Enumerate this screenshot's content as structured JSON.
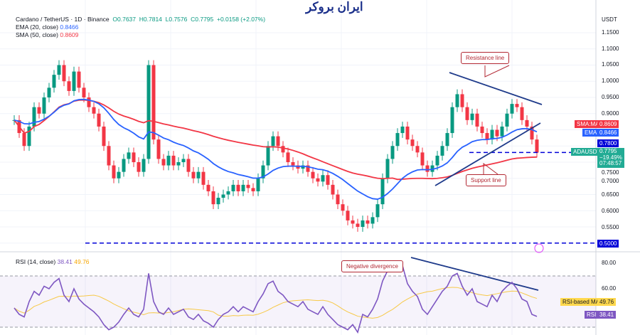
{
  "header": {
    "symbol": "Cardano / TetherUS · 1D · Binance",
    "o": "O0.7637",
    "h": "H0.7814",
    "l": "L0.7576",
    "c": "C0.7795",
    "change": "+0.0158 (+2.07%)",
    "ema_label": "EMA (20, close)",
    "ema_value": "0.8466",
    "sma_label": "SMA (50, close)",
    "sma_value": "0.8609",
    "rsi_label": "RSI (14, close)",
    "rsi_value": "38.41",
    "rsi_ma_value": "49.76"
  },
  "logo": "ایران بروکر",
  "price_axis": {
    "currency": "USDT",
    "ticks": [
      "1.1500",
      "1.1000",
      "1.0500",
      "1.0000",
      "0.9500",
      "0.9000",
      "0.7500",
      "0.7000",
      "0.6500",
      "0.6000",
      "0.5500"
    ]
  },
  "rsi_axis": {
    "ticks": [
      "80.00",
      "60.00"
    ]
  },
  "badges": {
    "sma_ma": "SMA:MA",
    "sma_val": "0.8609",
    "ema": "EMA",
    "ema_val": "0.8466",
    "level": "0.7800",
    "symbol": "ADAUSDT",
    "price": "0.7795",
    "pct": "−19.49%",
    "countdown": "07:48:57",
    "support_level": "0.5000",
    "rsi_ma": "RSI-based MA",
    "rsi_ma_val": "49.76",
    "rsi": "RSI",
    "rsi_val": "38.41"
  },
  "annotations": {
    "resistance": "Resistance line",
    "support": "Support line",
    "divergence": "Negative divergence"
  },
  "colors": {
    "up": "#089981",
    "down": "#f23645",
    "ema": "#2962ff",
    "sma": "#f23645",
    "rsi": "#7e57c2",
    "rsi_ma": "#f7c948",
    "trend": "#1e3a8a"
  },
  "chart_data": {
    "type": "candlestick",
    "ylim": [
      0.5,
      1.15
    ],
    "rsi_ylim": [
      20,
      85
    ],
    "close": [
      0.88,
      0.84,
      0.8,
      0.86,
      0.92,
      0.9,
      0.95,
      0.98,
      1.02,
      1.05,
      1.0,
      0.97,
      1.03,
      0.98,
      0.95,
      0.92,
      0.9,
      0.86,
      0.8,
      0.74,
      0.7,
      0.72,
      0.76,
      0.78,
      0.75,
      0.72,
      0.76,
      1.05,
      0.82,
      0.76,
      0.74,
      0.77,
      0.74,
      0.75,
      0.76,
      0.72,
      0.7,
      0.72,
      0.68,
      0.66,
      0.62,
      0.64,
      0.65,
      0.66,
      0.68,
      0.66,
      0.68,
      0.67,
      0.66,
      0.7,
      0.74,
      0.8,
      0.83,
      0.8,
      0.78,
      0.75,
      0.74,
      0.73,
      0.74,
      0.72,
      0.7,
      0.69,
      0.71,
      0.68,
      0.65,
      0.62,
      0.6,
      0.57,
      0.56,
      0.55,
      0.57,
      0.56,
      0.58,
      0.62,
      0.7,
      0.76,
      0.8,
      0.84,
      0.86,
      0.82,
      0.8,
      0.78,
      0.74,
      0.72,
      0.74,
      0.77,
      0.8,
      0.84,
      0.92,
      0.96,
      0.92,
      0.88,
      0.9,
      0.86,
      0.84,
      0.82,
      0.85,
      0.83,
      0.86,
      0.9,
      0.93,
      0.92,
      0.88,
      0.86,
      0.82,
      0.7795
    ],
    "rsi": [
      45,
      40,
      38,
      50,
      58,
      55,
      62,
      60,
      65,
      68,
      55,
      50,
      60,
      52,
      48,
      45,
      42,
      38,
      32,
      28,
      30,
      34,
      40,
      45,
      40,
      38,
      44,
      72,
      50,
      42,
      40,
      45,
      40,
      42,
      44,
      38,
      36,
      40,
      35,
      33,
      30,
      36,
      40,
      42,
      46,
      42,
      46,
      44,
      42,
      50,
      56,
      64,
      66,
      58,
      55,
      50,
      48,
      46,
      50,
      44,
      42,
      40,
      46,
      40,
      36,
      32,
      30,
      28,
      32,
      26,
      40,
      38,
      44,
      52,
      66,
      74,
      76,
      80,
      78,
      64,
      58,
      54,
      44,
      40,
      46,
      52,
      58,
      62,
      70,
      72,
      62,
      55,
      60,
      50,
      48,
      46,
      55,
      50,
      58,
      62,
      65,
      60,
      52,
      50,
      40,
      38.41
    ],
    "levels": [
      0.78,
      0.5
    ],
    "rsi_bands": [
      70,
      30
    ]
  }
}
